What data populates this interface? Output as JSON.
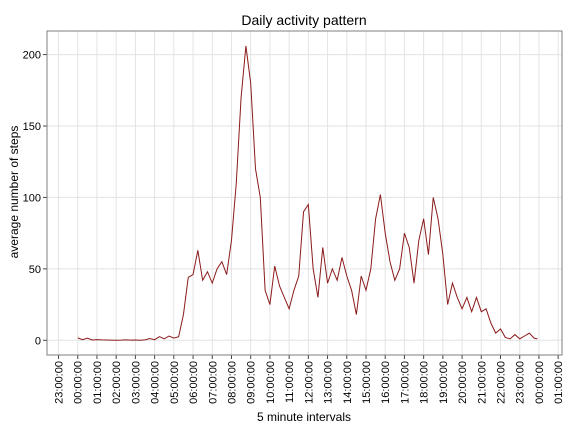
{
  "chart_data": {
    "type": "line",
    "title": "Daily activity pattern",
    "xlabel": "5 minute intervals",
    "ylabel": "average number of steps",
    "x": [
      0,
      0.25,
      0.5,
      0.75,
      1,
      1.25,
      1.5,
      1.75,
      2,
      2.25,
      2.5,
      2.75,
      3,
      3.25,
      3.5,
      3.75,
      4,
      4.25,
      4.5,
      4.75,
      5,
      5.25,
      5.5,
      5.75,
      6,
      6.25,
      6.5,
      6.75,
      7,
      7.25,
      7.5,
      7.75,
      8,
      8.25,
      8.5,
      8.75,
      9,
      9.25,
      9.5,
      9.75,
      10,
      10.25,
      10.5,
      10.75,
      11,
      11.25,
      11.5,
      11.75,
      12,
      12.25,
      12.5,
      12.75,
      13,
      13.25,
      13.5,
      13.75,
      14,
      14.25,
      14.5,
      14.75,
      15,
      15.25,
      15.5,
      15.75,
      16,
      16.25,
      16.5,
      16.75,
      17,
      17.25,
      17.5,
      17.75,
      18,
      18.25,
      18.5,
      18.75,
      19,
      19.25,
      19.5,
      19.75,
      20,
      20.25,
      20.5,
      20.75,
      21,
      21.25,
      21.5,
      21.75,
      22,
      22.25,
      22.5,
      22.75,
      23,
      23.25,
      23.5,
      23.75,
      23.92
    ],
    "series": [
      {
        "name": "average number of steps",
        "color": "#8b1a1a",
        "values": [
          1.7,
          0.4,
          1.5,
          0.2,
          0.5,
          0.3,
          0.2,
          0.1,
          0,
          0.1,
          0.3,
          0.1,
          0.2,
          0,
          0.3,
          1.2,
          0.4,
          2.5,
          1,
          3,
          1.5,
          2.5,
          18,
          44,
          46,
          63,
          42,
          48,
          40,
          50,
          55,
          46,
          70,
          110,
          170,
          206,
          180,
          120,
          100,
          35,
          25,
          52,
          38,
          30,
          22,
          35,
          45,
          90,
          95,
          50,
          30,
          65,
          40,
          50,
          42,
          58,
          45,
          35,
          18,
          45,
          35,
          50,
          85,
          102,
          75,
          55,
          42,
          50,
          75,
          65,
          40,
          70,
          85,
          60,
          100,
          85,
          60,
          25,
          40,
          30,
          22,
          30,
          20,
          30,
          20,
          22,
          12,
          5,
          8,
          2,
          1,
          4,
          1,
          3,
          5,
          1.5,
          1
        ]
      }
    ],
    "xlim": [
      -1.6,
      25.2
    ],
    "ylim": [
      -10.3,
      216.5
    ],
    "xticks": [
      {
        "value": -1,
        "label": "23:00:00"
      },
      {
        "value": 0,
        "label": "00:00:00"
      },
      {
        "value": 1,
        "label": "01:00:00"
      },
      {
        "value": 2,
        "label": "02:00:00"
      },
      {
        "value": 3,
        "label": "03:00:00"
      },
      {
        "value": 4,
        "label": "04:00:00"
      },
      {
        "value": 5,
        "label": "05:00:00"
      },
      {
        "value": 6,
        "label": "06:00:00"
      },
      {
        "value": 7,
        "label": "07:00:00"
      },
      {
        "value": 8,
        "label": "08:00:00"
      },
      {
        "value": 9,
        "label": "09:00:00"
      },
      {
        "value": 10,
        "label": "10:00:00"
      },
      {
        "value": 11,
        "label": "11:00:00"
      },
      {
        "value": 12,
        "label": "12:00:00"
      },
      {
        "value": 13,
        "label": "13:00:00"
      },
      {
        "value": 14,
        "label": "14:00:00"
      },
      {
        "value": 15,
        "label": "15:00:00"
      },
      {
        "value": 16,
        "label": "16:00:00"
      },
      {
        "value": 17,
        "label": "17:00:00"
      },
      {
        "value": 18,
        "label": "18:00:00"
      },
      {
        "value": 19,
        "label": "19:00:00"
      },
      {
        "value": 20,
        "label": "20:00:00"
      },
      {
        "value": 21,
        "label": "21:00:00"
      },
      {
        "value": 22,
        "label": "22:00:00"
      },
      {
        "value": 23,
        "label": "23:00:00"
      },
      {
        "value": 24,
        "label": "00:00:00"
      },
      {
        "value": 25,
        "label": "01:00:00"
      }
    ],
    "yticks": [
      0,
      50,
      100,
      150,
      200
    ],
    "grid": true
  }
}
